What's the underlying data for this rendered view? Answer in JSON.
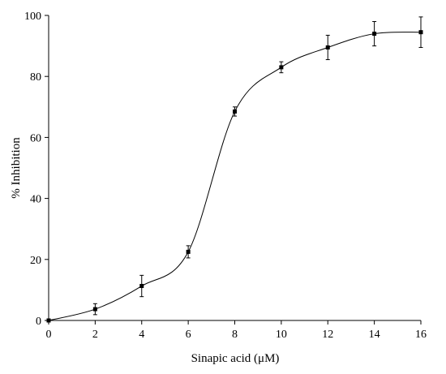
{
  "chart_data": {
    "type": "scatter",
    "xlabel": "Sinapic acid (μM)",
    "ylabel": "% Inhibition",
    "xlim": [
      0,
      16
    ],
    "ylim": [
      0,
      100
    ],
    "x_ticks": [
      0,
      2,
      4,
      6,
      8,
      10,
      12,
      14,
      16
    ],
    "y_ticks": [
      0,
      20,
      40,
      60,
      80,
      100
    ],
    "grid": false,
    "marker": "square",
    "trendline": "smooth",
    "series": [
      {
        "x": [
          0,
          2,
          4,
          6,
          8,
          10,
          12,
          14,
          16
        ],
        "y": [
          0,
          3.7,
          11.3,
          22.5,
          68.5,
          83.0,
          89.5,
          94.0,
          94.5
        ],
        "error": [
          0,
          1.8,
          3.5,
          2.0,
          1.5,
          1.8,
          4.0,
          4.0,
          5.0
        ]
      }
    ],
    "colors": {
      "line": "#000000",
      "marker": "#000000"
    }
  }
}
